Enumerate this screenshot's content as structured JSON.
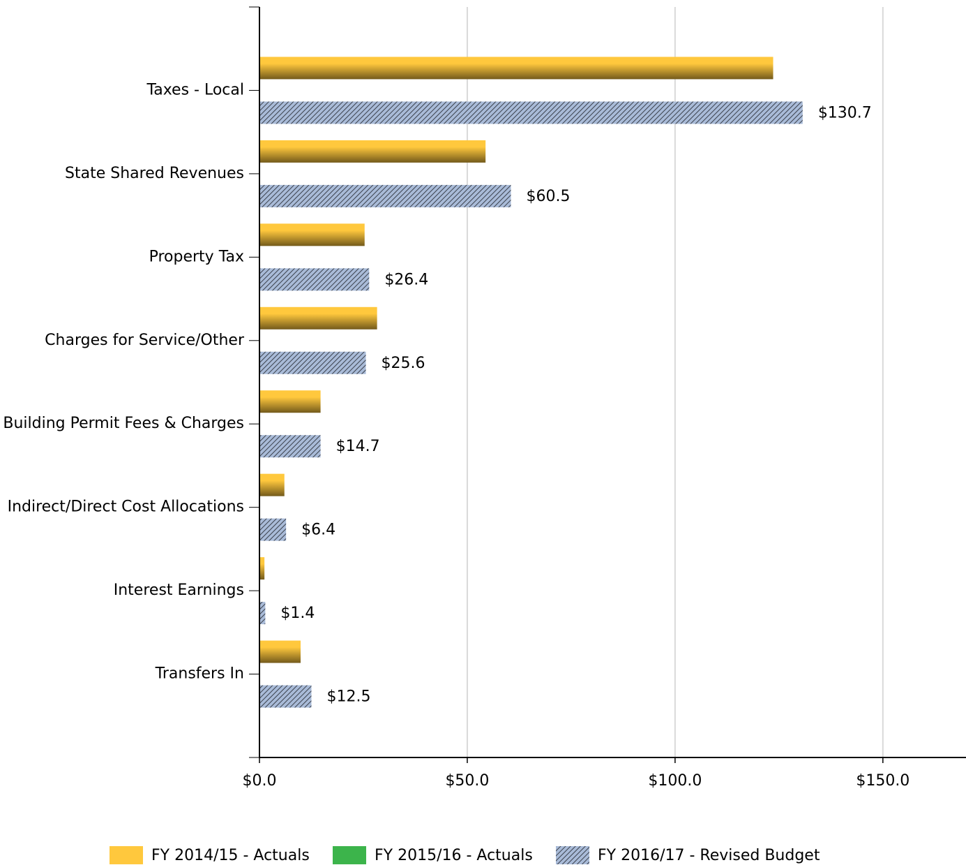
{
  "chart_data": {
    "type": "bar",
    "orientation": "horizontal",
    "categories": [
      "Taxes - Local",
      "State Shared Revenues",
      "Property Tax",
      "Charges for Service/Other",
      "Building Permit Fees & Charges",
      "Indirect/Direct Cost Allocations",
      "Interest Earnings",
      "Transfers In"
    ],
    "series": [
      {
        "name": "FY 2014/15 - Actuals",
        "color": "#ffc83d",
        "style": "gradient",
        "values": [
          123.6,
          54.4,
          25.3,
          28.3,
          14.7,
          6.0,
          1.2,
          9.9
        ]
      },
      {
        "name": "FY 2015/16 - Actuals",
        "color": "#3cb44b",
        "style": "solid",
        "values": [
          null,
          null,
          null,
          null,
          null,
          null,
          null,
          null
        ]
      },
      {
        "name": "FY 2016/17 - Revised Budget",
        "color": "#a9bbd8",
        "style": "hatch",
        "values": [
          130.7,
          60.5,
          26.4,
          25.6,
          14.7,
          6.4,
          1.4,
          12.5
        ],
        "value_labels": [
          "$130.7",
          "$60.5",
          "$26.4",
          "$25.6",
          "$14.7",
          "$6.4",
          "$1.4",
          "$12.5"
        ]
      }
    ],
    "xlim": [
      0,
      170
    ],
    "xticks": [
      {
        "value": 0,
        "label": "$0.0"
      },
      {
        "value": 50,
        "label": "$50.0"
      },
      {
        "value": 100,
        "label": "$100.0"
      },
      {
        "value": 150,
        "label": "$150.0"
      }
    ],
    "grid": true,
    "legend": "bottom"
  }
}
